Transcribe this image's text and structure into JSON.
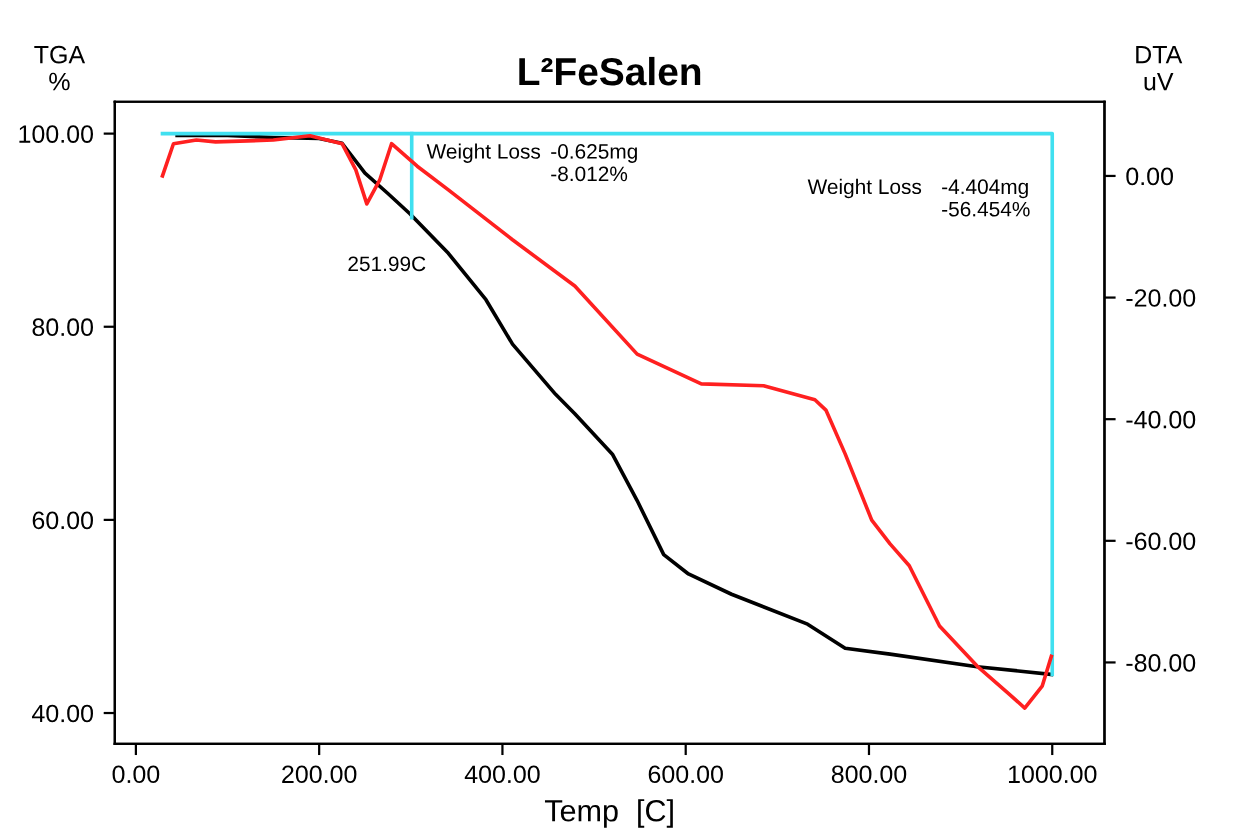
{
  "chart_data": {
    "type": "line",
    "title": "L²FeSalen",
    "xlabel": "Temp  [C]",
    "ylabel": "TGA\n%",
    "y2label": "DTA\nuV",
    "series": [
      {
        "color": "#000000",
        "x": [
          45,
          100,
          150,
          200,
          225,
          250,
          275,
          299,
          341,
          382,
          411,
          458,
          479,
          520,
          547,
          576,
          603,
          650,
          733,
          774,
          823,
          918,
          999
        ],
        "values": [
          99.8,
          99.8,
          99.6,
          99.5,
          99.0,
          95.9,
          93.8,
          91.7,
          87.6,
          82.8,
          78.2,
          73.0,
          71.0,
          66.8,
          62.0,
          56.4,
          54.4,
          52.3,
          49.2,
          46.7,
          46.1,
          44.8,
          44.0
        ]
      },
      {
        "color": "#ff2020",
        "axis": "y2",
        "x": [
          29,
          41,
          66,
          87,
          150,
          190,
          225,
          240,
          252,
          266,
          279,
          307,
          341,
          411,
          479,
          547,
          617,
          685,
          741,
          753,
          774,
          803,
          823,
          844,
          877,
          918,
          953,
          970,
          989,
          999
        ],
        "values": [
          0,
          5.3,
          5.9,
          5.6,
          5.9,
          6.6,
          5.3,
          1.0,
          -4.6,
          -0.7,
          5.3,
          1.6,
          -2.3,
          -10.5,
          -18.1,
          -29.3,
          -34.2,
          -34.5,
          -36.8,
          -38.5,
          -45.7,
          -56.6,
          -60.5,
          -64.1,
          -74.0,
          -80.6,
          -85.2,
          -87.5,
          -83.9,
          -79.0
        ]
      },
      {
        "color": "#40e0f0",
        "x": [
          29,
          1000,
          1000
        ],
        "values": [
          100,
          100,
          44.0
        ]
      },
      {
        "color": "#40e0f0",
        "x": [
          301,
          301
        ],
        "values": [
          100,
          91.3
        ]
      }
    ],
    "annotations": [
      "Weight Loss",
      "-0.625mg\n-8.012%",
      "251.99C",
      "Weight Loss",
      "-4.404mg\n-56.454%"
    ],
    "xlim": [
      -23,
      1057
    ],
    "ylim": [
      36.8,
      103.3
    ],
    "y2lim": [
      -93.4,
      12.2
    ],
    "xticks": [
      {
        "value": 0,
        "label": "0.00"
      },
      {
        "value": 200,
        "label": "200.00"
      },
      {
        "value": 400,
        "label": "400.00"
      },
      {
        "value": 600,
        "label": "600.00"
      },
      {
        "value": 800,
        "label": "800.00"
      },
      {
        "value": 1000,
        "label": "1000.00"
      }
    ],
    "yticks": [
      {
        "value": 40,
        "label": "40.00"
      },
      {
        "value": 60,
        "label": "60.00"
      },
      {
        "value": 80,
        "label": "80.00"
      },
      {
        "value": 100,
        "label": "100.00"
      }
    ],
    "y2ticks": [
      {
        "value": -80,
        "label": "-80.00"
      },
      {
        "value": -60,
        "label": "-60.00"
      },
      {
        "value": -40,
        "label": "-40.00"
      },
      {
        "value": -20,
        "label": "-20.00"
      },
      {
        "value": 0,
        "label": "0.00"
      }
    ],
    "grid": false,
    "legend": false
  }
}
